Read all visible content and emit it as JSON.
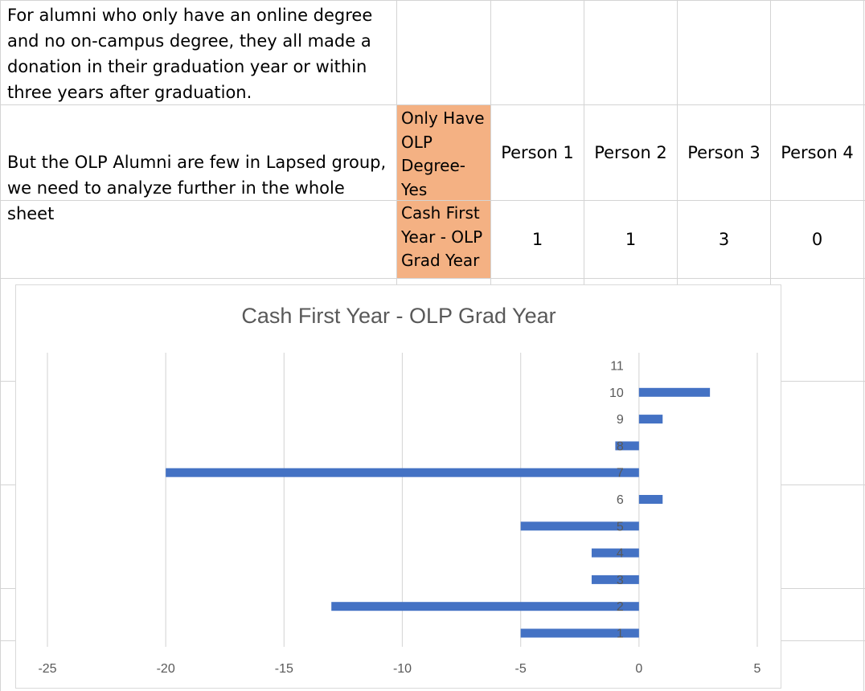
{
  "sheet": {
    "note1": "For alumni who only have an online degree and no on-campus degree, they all made a donation in their graduation year or within three years after graduation.",
    "note2": "But the OLP Alumni are few in Lapsed group, we need to analyze further in the whole sheet",
    "row1_label": "Only Have OLP Degree- Yes",
    "row2_label": "Cash First Year - OLP Grad Year",
    "persons": [
      "Person 1",
      "Person 2",
      "Person 3",
      "Person 4"
    ],
    "values": [
      "1",
      "1",
      "3",
      "0"
    ],
    "highlight_color": "#f4b183"
  },
  "chart_data": {
    "type": "bar",
    "orientation": "horizontal",
    "title": "Cash First Year - OLP Grad Year",
    "categories": [
      "1",
      "2",
      "3",
      "4",
      "5",
      "6",
      "7",
      "8",
      "9",
      "10",
      "11"
    ],
    "values": [
      -5,
      -13,
      -2,
      -2,
      -5,
      1,
      -20,
      -1,
      1,
      3,
      null
    ],
    "xlim": [
      -25,
      5
    ],
    "xticks": [
      "-25",
      "-20",
      "-15",
      "-10",
      "-5",
      "0",
      "5"
    ],
    "xlabel": "",
    "ylabel": "",
    "grid": true,
    "bar_color": "#4472c4"
  }
}
